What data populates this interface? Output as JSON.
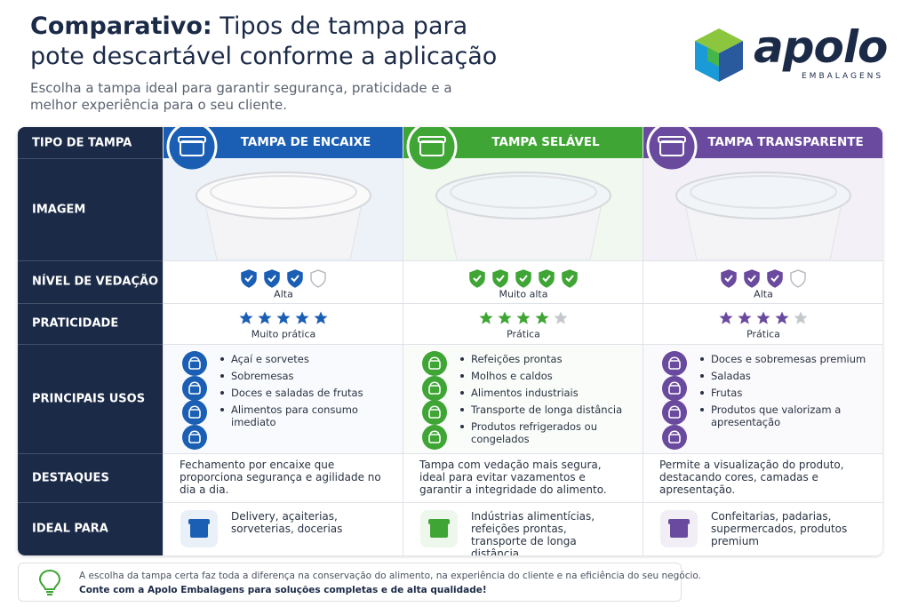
{
  "header": {
    "title_bold": "Comparativo:",
    "title_rest": "Tipos de tampa para",
    "title_line2": "pote descartável conforme a aplicação",
    "subtitle": "Escolha a tampa ideal para garantir segurança, praticidade e a melhor experiência para o seu cliente.",
    "logo": "apolo",
    "logo_sub": "EMBALAGENS"
  },
  "table": {
    "row_labels": [
      "TIPO DE TAMPA",
      "IMAGEM",
      "NÍVEL DE VEDAÇÃO",
      "PRATICIDADE",
      "PRINCIPAIS USOS",
      "DESTAQUES",
      "IDEAL PARA"
    ],
    "columns": [
      {
        "name": "TAMPA DE ENCAIXE",
        "color": "#1b5fb5",
        "seal_filled": 3,
        "seal_total": 4,
        "seal_label": "Alta",
        "stars_filled": 5,
        "stars_total": 5,
        "practicality_label": "Muito prática",
        "uses": [
          "Açaí e sorvetes",
          "Sobremesas",
          "Doces e saladas de frutas",
          "Alimentos para consumo imediato"
        ],
        "highlights": "Fechamento por encaixe que proporciona segurança e agilidade no dia a dia.",
        "ideal": "Delivery, açaiterias, sorveterias, docerias"
      },
      {
        "name": "TAMPA SELÁVEL",
        "color": "#3fa535",
        "seal_filled": 5,
        "seal_total": 5,
        "seal_label": "Muito alta",
        "stars_filled": 4,
        "stars_total": 5,
        "practicality_label": "Prática",
        "uses": [
          "Refeições prontas",
          "Molhos e caldos",
          "Alimentos industriais",
          "Transporte de longa distância",
          "Produtos refrigerados ou congelados"
        ],
        "highlights": "Tampa com vedação mais segura, ideal para evitar vazamentos e garantir a integridade do alimento.",
        "ideal": "Indústrias alimentícias, refeições prontas, transporte de longa distância"
      },
      {
        "name": "TAMPA TRANSPARENTE",
        "color": "#6a4a9e",
        "seal_filled": 3,
        "seal_total": 4,
        "seal_label": "Alta",
        "stars_filled": 4,
        "stars_total": 5,
        "practicality_label": "Prática",
        "uses": [
          "Doces e sobremesas premium",
          "Saladas",
          "Frutas",
          "Produtos que valorizam a apresentação"
        ],
        "highlights": "Permite a visualização do produto, destacando cores, camadas e apresentação.",
        "ideal": "Confeitarias, padarias, supermercados, produtos premium"
      }
    ]
  },
  "footer": {
    "line1": "A escolha da tampa certa faz toda a diferença na conservação do alimento, na experiência do cliente e na eficiência do seu negócio.",
    "line2": "Conte com a Apolo Embalagens para soluções completas e de alta qualidade!"
  }
}
